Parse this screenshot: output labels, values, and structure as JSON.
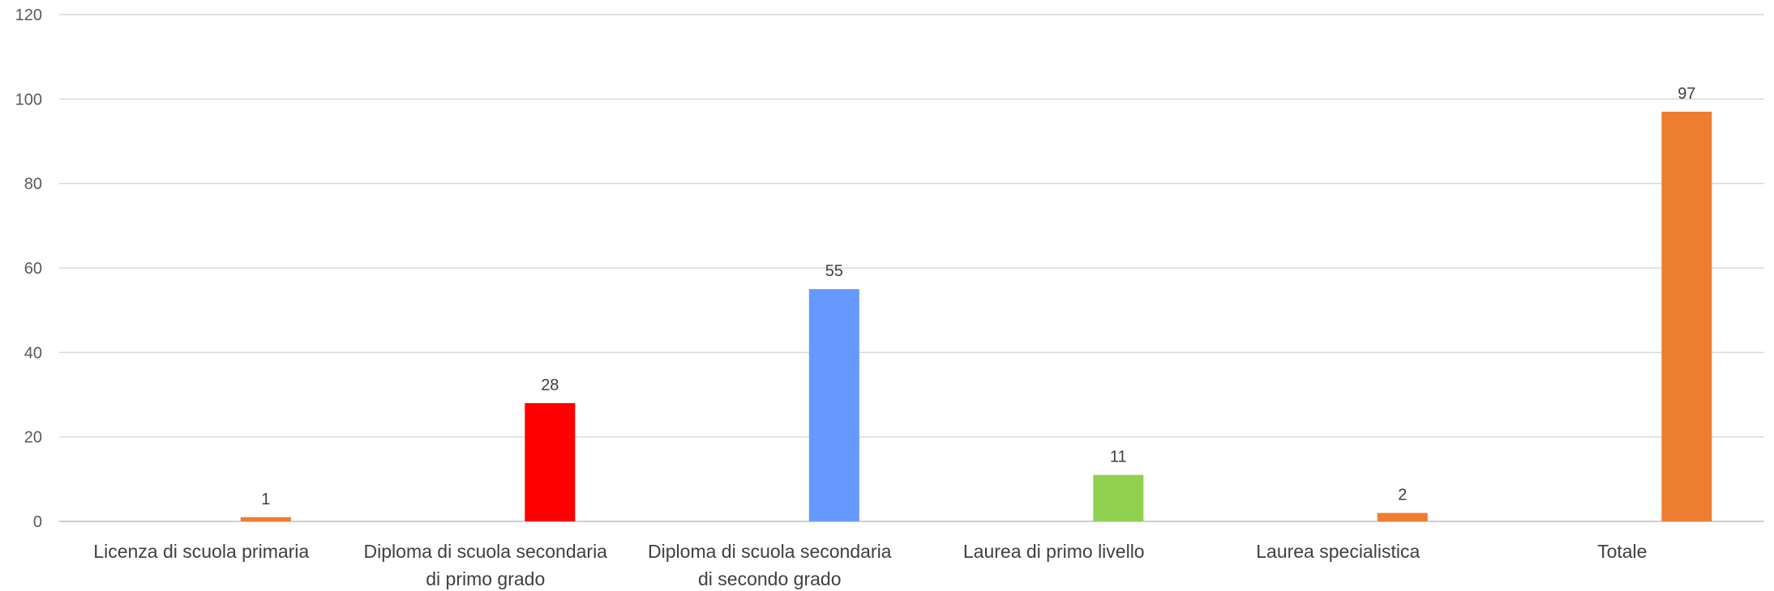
{
  "chart_data": {
    "type": "bar",
    "categories": [
      [
        "Licenza di scuola primaria"
      ],
      [
        "Diploma di scuola secondaria",
        "di primo grado"
      ],
      [
        "Diploma di scuola secondaria",
        "di secondo grado"
      ],
      [
        "Laurea di primo livello"
      ],
      [
        "Laurea specialistica"
      ],
      [
        "Totale"
      ]
    ],
    "values": [
      1,
      28,
      55,
      11,
      2,
      97
    ],
    "colors": [
      "#ed7d31",
      "#ff0000",
      "#6699ff",
      "#92d050",
      "#ed7d31",
      "#ed7d31"
    ],
    "data_labels": [
      "1",
      "28",
      "55",
      "11",
      "2",
      "97"
    ],
    "ylim": [
      0,
      120
    ],
    "yticks": [
      0,
      20,
      40,
      60,
      80,
      100,
      120
    ],
    "grid": true,
    "legend": "none",
    "title": "",
    "xlabel": "",
    "ylabel": ""
  }
}
